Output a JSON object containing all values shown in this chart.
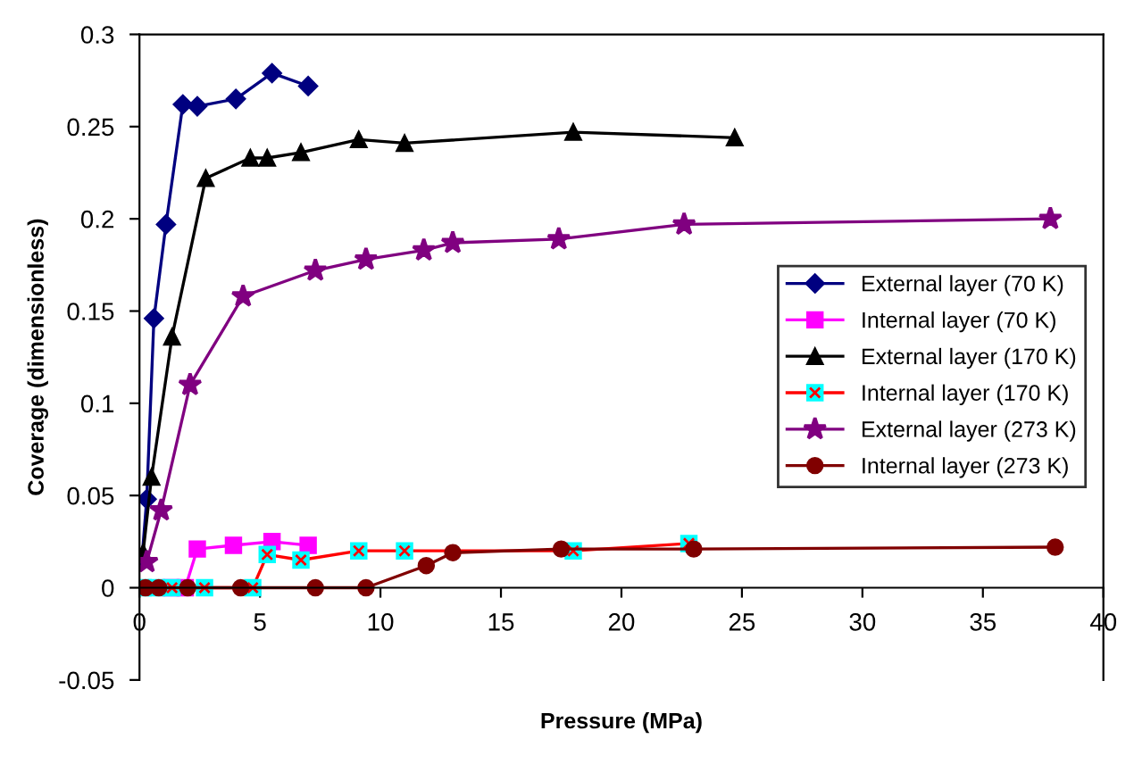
{
  "chart_data": {
    "type": "line",
    "xlabel": "Pressure (MPa)",
    "ylabel": "Coverage (dimensionless)",
    "xlim": [
      0,
      40
    ],
    "xticks": [
      0,
      5,
      10,
      15,
      20,
      25,
      30,
      35,
      40
    ],
    "ylim": [
      -0.05,
      0.3
    ],
    "yticks": [
      -0.05,
      0,
      0.05,
      0.1,
      0.15,
      0.2,
      0.25,
      0.3
    ],
    "grid": false,
    "legend": "right",
    "series": [
      {
        "name": "External layer (70 K)",
        "color": "#000080",
        "marker": "diamond",
        "x": [
          0.1,
          0.3,
          0.6,
          1.1,
          1.8,
          2.4,
          4.0,
          5.5,
          7.0
        ],
        "values": [
          0.015,
          0.048,
          0.146,
          0.197,
          0.262,
          0.261,
          0.265,
          0.279,
          0.272
        ]
      },
      {
        "name": "Internal layer (70 K)",
        "color": "#ff00ff",
        "marker": "square",
        "x": [
          1.3,
          1.9,
          2.4,
          3.9,
          5.5,
          7.0
        ],
        "values": [
          0,
          0,
          0.021,
          0.023,
          0.025,
          0.023
        ]
      },
      {
        "name": "External layer (170 K)",
        "color": "#000000",
        "marker": "triangle",
        "x": [
          0.15,
          0.5,
          1.35,
          2.75,
          4.6,
          5.3,
          6.7,
          9.1,
          11.0,
          18.0,
          24.7
        ],
        "values": [
          0.019,
          0.06,
          0.136,
          0.222,
          0.233,
          0.233,
          0.236,
          0.243,
          0.241,
          0.247,
          0.244
        ]
      },
      {
        "name": "Internal layer (170 K)",
        "color": "#ff0000",
        "marker": "cross",
        "x": [
          0.15,
          0.7,
          1.35,
          2.7,
          4.7,
          5.3,
          6.7,
          9.1,
          11.0,
          18.0,
          22.8
        ],
        "values": [
          0,
          0,
          0,
          0,
          0,
          0.018,
          0.015,
          0.02,
          0.02,
          0.02,
          0.024
        ]
      },
      {
        "name": "External layer (273 K)",
        "color": "#800080",
        "marker": "star",
        "x": [
          0.3,
          0.9,
          2.1,
          4.3,
          7.3,
          9.4,
          11.8,
          13.0,
          17.4,
          22.6,
          37.8
        ],
        "values": [
          0.014,
          0.042,
          0.11,
          0.158,
          0.172,
          0.178,
          0.183,
          0.187,
          0.189,
          0.197,
          0.2
        ]
      },
      {
        "name": "Internal layer (273 K)",
        "color": "#800000",
        "marker": "circle",
        "x": [
          0.25,
          0.8,
          2.0,
          4.2,
          7.3,
          9.4,
          11.9,
          13.0,
          17.5,
          23.0,
          38.0
        ],
        "values": [
          0,
          0,
          0,
          0,
          0,
          0,
          0.012,
          0.019,
          0.021,
          0.021,
          0.022
        ]
      }
    ]
  }
}
